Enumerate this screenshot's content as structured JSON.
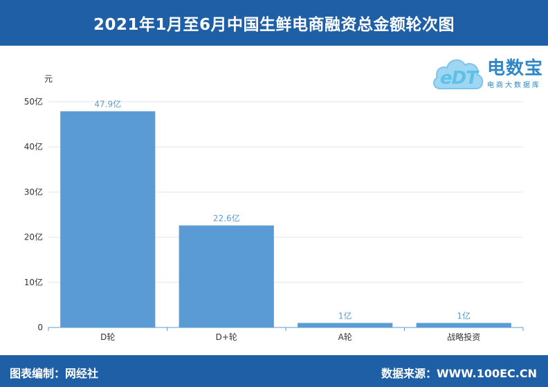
{
  "header": {
    "title": "2021年1月至6月中国生鲜电商融资总金额轮次图"
  },
  "footer": {
    "left": "图表编制：网经社",
    "right": "数据来源：WWW.100EC.CN"
  },
  "logo": {
    "cloud_text": "eDT",
    "brand": "电数宝",
    "sub": "电商大数据库",
    "colors": {
      "brand": "#2d87c9",
      "cloud": "#9fd6f2"
    }
  },
  "chart_data": {
    "type": "bar",
    "ylabel": "元",
    "categories": [
      "D轮",
      "D+轮",
      "A轮",
      "战略投资"
    ],
    "values": [
      47.9,
      22.6,
      1,
      1
    ],
    "data_labels": [
      "47.9亿",
      "22.6亿",
      "1亿",
      "1亿"
    ],
    "ylim": [
      0,
      50
    ],
    "yticks": [
      0,
      10,
      20,
      30,
      40,
      50
    ],
    "ytick_labels": [
      "0",
      "10亿",
      "20亿",
      "30亿",
      "40亿",
      "50亿"
    ],
    "grid": true,
    "colors": {
      "bar": "#5b9bd5",
      "label": "#5b9bd5",
      "axis": "#5b9bd5",
      "grid": "#e6e6e6"
    }
  }
}
